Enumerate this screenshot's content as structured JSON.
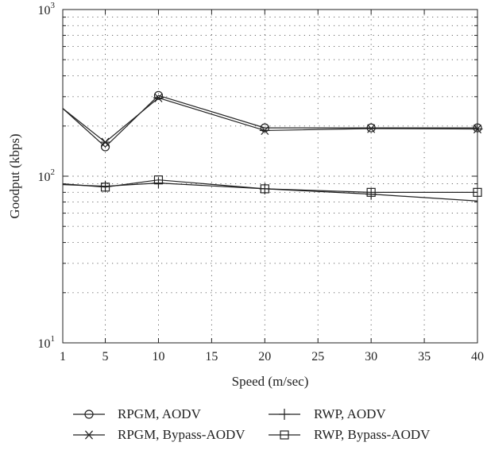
{
  "chart_data": {
    "type": "line",
    "xlabel": "Speed (m/sec)",
    "ylabel": "Goodput (kbps)",
    "x_scale": "linear",
    "y_scale": "log",
    "xlim": [
      1,
      40
    ],
    "ylim": [
      10,
      1000
    ],
    "grid": true,
    "legend_position": "bottom",
    "x_ticks": [
      1,
      5,
      10,
      15,
      20,
      25,
      30,
      35,
      40
    ],
    "x_tick_labels": [
      "1",
      "5",
      "10",
      "15",
      "20",
      "25",
      "30",
      "35",
      "40"
    ],
    "y_ticks": [
      10,
      100,
      1000
    ],
    "y_tick_labels": [
      {
        "base": "10",
        "exp": "1"
      },
      {
        "base": "10",
        "exp": "2"
      },
      {
        "base": "10",
        "exp": "3"
      }
    ],
    "x": [
      1,
      5,
      10,
      20,
      30,
      40
    ],
    "series": [
      {
        "name": "RPGM, AODV",
        "marker": "circle",
        "values": [
          255,
          150,
          305,
          195,
          195,
          195
        ]
      },
      {
        "name": "RPGM, Bypass-AODV",
        "marker": "asterisk",
        "values": [
          255,
          160,
          295,
          188,
          193,
          192
        ]
      },
      {
        "name": "RWP, AODV",
        "marker": "plus",
        "values": [
          89,
          87,
          91,
          84,
          78,
          71
        ]
      },
      {
        "name": "RWP, Bypass-AODV",
        "marker": "square",
        "values": [
          90,
          86,
          95,
          84,
          80,
          80
        ]
      }
    ],
    "line_color": "#222222"
  }
}
